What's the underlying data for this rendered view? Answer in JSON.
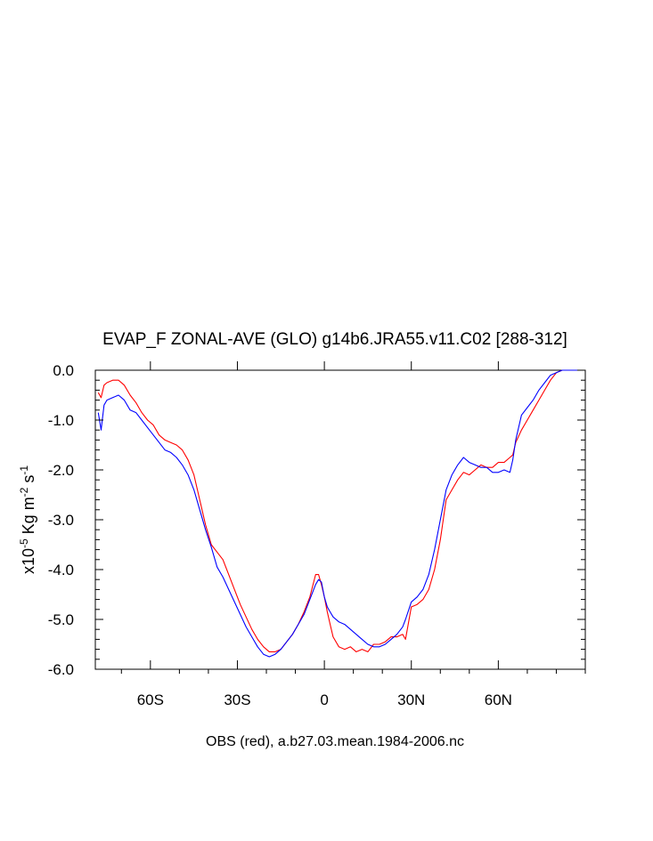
{
  "chart_data": {
    "type": "line",
    "title": "EVAP_F ZONAL-AVE (GLO) g14b6.JRA55.v11.C02 [288-312]",
    "xlabel": "OBS (red), a.b27.03.mean.1984-2006.nc",
    "ylabel": {
      "prefix": "x10",
      "prefix_exp": "-5",
      "unit": " Kg m",
      "m_exp": "-2",
      "s": " s",
      "s_exp": "-1"
    },
    "xlim": [
      -79,
      90
    ],
    "ylim": [
      -6.0,
      0.0
    ],
    "x_ticks": [
      {
        "value": -60,
        "label": "60S"
      },
      {
        "value": -30,
        "label": "30S"
      },
      {
        "value": 0,
        "label": "0"
      },
      {
        "value": 30,
        "label": "30N"
      },
      {
        "value": 60,
        "label": "60N"
      }
    ],
    "y_ticks": [
      {
        "value": 0.0,
        "label": "0.0"
      },
      {
        "value": -1.0,
        "label": "-1.0"
      },
      {
        "value": -2.0,
        "label": "-2.0"
      },
      {
        "value": -3.0,
        "label": "-3.0"
      },
      {
        "value": -4.0,
        "label": "-4.0"
      },
      {
        "value": -5.0,
        "label": "-5.0"
      },
      {
        "value": -6.0,
        "label": "-6.0"
      }
    ],
    "grid": false,
    "series": [
      {
        "color": "#ff0000",
        "x": [
          -78,
          -77,
          -76,
          -75,
          -73,
          -71,
          -69,
          -67,
          -65,
          -63,
          -61,
          -59,
          -57,
          -55,
          -53,
          -51,
          -49,
          -47,
          -45,
          -43,
          -41,
          -39,
          -37,
          -35,
          -33,
          -31,
          -29,
          -27,
          -25,
          -23,
          -21,
          -19,
          -17,
          -15,
          -13,
          -11,
          -9,
          -7,
          -5,
          -3,
          -2,
          -1,
          0,
          1,
          2,
          3,
          5,
          7,
          9,
          11,
          13,
          15,
          17,
          19,
          21,
          23,
          25,
          27,
          28,
          30,
          32,
          34,
          36,
          38,
          40,
          42,
          44,
          46,
          48,
          50,
          52,
          54,
          56,
          58,
          60,
          62,
          64,
          65,
          66,
          68,
          70,
          72,
          74,
          76,
          78,
          80,
          82,
          84,
          86,
          88,
          90
        ],
        "values": [
          -0.45,
          -0.55,
          -0.3,
          -0.25,
          -0.2,
          -0.2,
          -0.3,
          -0.5,
          -0.65,
          -0.85,
          -1.0,
          -1.1,
          -1.3,
          -1.4,
          -1.45,
          -1.5,
          -1.6,
          -1.8,
          -2.1,
          -2.6,
          -3.1,
          -3.5,
          -3.65,
          -3.8,
          -4.1,
          -4.4,
          -4.7,
          -4.95,
          -5.2,
          -5.4,
          -5.55,
          -5.65,
          -5.65,
          -5.6,
          -5.45,
          -5.3,
          -5.1,
          -4.85,
          -4.55,
          -4.1,
          -4.1,
          -4.3,
          -4.55,
          -4.85,
          -5.1,
          -5.35,
          -5.55,
          -5.6,
          -5.55,
          -5.65,
          -5.6,
          -5.65,
          -5.5,
          -5.5,
          -5.45,
          -5.35,
          -5.35,
          -5.3,
          -5.4,
          -4.75,
          -4.7,
          -4.6,
          -4.4,
          -4.0,
          -3.4,
          -2.6,
          -2.4,
          -2.2,
          -2.05,
          -2.1,
          -2.0,
          -1.9,
          -1.95,
          -1.95,
          -1.85,
          -1.85,
          -1.75,
          -1.7,
          -1.45,
          -1.2,
          -1.0,
          -0.8,
          -0.6,
          -0.4,
          -0.2,
          -0.05,
          0.0,
          0.0,
          0.0,
          0.0,
          0.0
        ]
      },
      {
        "color": "#0000ff",
        "x": [
          -78,
          -77,
          -76,
          -75,
          -73,
          -71,
          -69,
          -67,
          -65,
          -63,
          -61,
          -59,
          -57,
          -55,
          -53,
          -51,
          -49,
          -47,
          -45,
          -43,
          -41,
          -39,
          -37,
          -35,
          -33,
          -31,
          -29,
          -27,
          -25,
          -23,
          -21,
          -19,
          -17,
          -15,
          -13,
          -11,
          -9,
          -7,
          -5,
          -3,
          -2,
          -1,
          0,
          1,
          2,
          3,
          5,
          7,
          9,
          11,
          13,
          15,
          17,
          19,
          21,
          23,
          25,
          27,
          28,
          30,
          32,
          34,
          36,
          38,
          40,
          42,
          44,
          46,
          48,
          50,
          52,
          54,
          56,
          58,
          60,
          62,
          64,
          65,
          66,
          68,
          70,
          72,
          74,
          76,
          78,
          80,
          82,
          84,
          86,
          88,
          90
        ],
        "values": [
          -0.85,
          -1.2,
          -0.7,
          -0.6,
          -0.55,
          -0.5,
          -0.6,
          -0.8,
          -0.85,
          -1.0,
          -1.15,
          -1.3,
          -1.45,
          -1.6,
          -1.65,
          -1.75,
          -1.9,
          -2.1,
          -2.4,
          -2.8,
          -3.2,
          -3.55,
          -3.95,
          -4.15,
          -4.4,
          -4.65,
          -4.9,
          -5.15,
          -5.35,
          -5.55,
          -5.7,
          -5.75,
          -5.7,
          -5.6,
          -5.45,
          -5.3,
          -5.1,
          -4.9,
          -4.6,
          -4.3,
          -4.2,
          -4.25,
          -4.55,
          -4.75,
          -4.85,
          -4.95,
          -5.05,
          -5.1,
          -5.2,
          -5.3,
          -5.4,
          -5.5,
          -5.55,
          -5.55,
          -5.5,
          -5.4,
          -5.3,
          -5.15,
          -5.0,
          -4.65,
          -4.55,
          -4.4,
          -4.1,
          -3.6,
          -3.0,
          -2.4,
          -2.1,
          -1.9,
          -1.75,
          -1.85,
          -1.9,
          -1.95,
          -1.95,
          -2.05,
          -2.05,
          -2.0,
          -2.05,
          -1.8,
          -1.4,
          -0.9,
          -0.75,
          -0.6,
          -0.4,
          -0.25,
          -0.1,
          -0.05,
          0.0,
          0.0,
          0.0,
          0.0,
          0.0
        ]
      }
    ]
  }
}
